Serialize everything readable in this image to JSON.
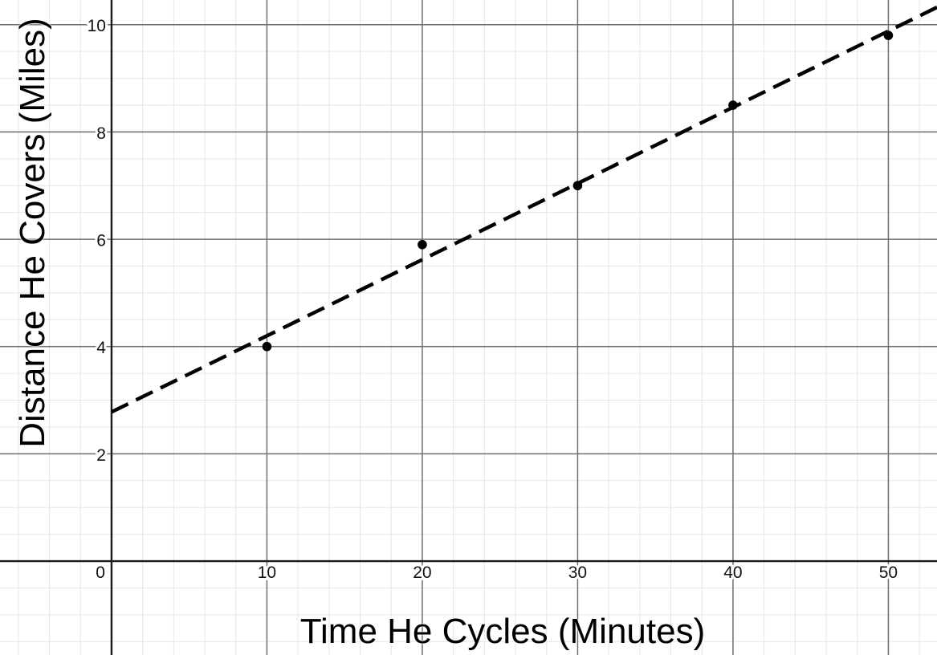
{
  "chart_data": {
    "type": "scatter",
    "title": "",
    "xlabel": "Time He Cycles (Minutes)",
    "ylabel": "Distance He Covers (Miles)",
    "x_ticks": [
      0,
      10,
      20,
      30,
      40,
      50
    ],
    "y_ticks": [
      2,
      4,
      6,
      8,
      10
    ],
    "xlim": [
      -7.18,
      53.13
    ],
    "ylim": [
      -1.75,
      10.46
    ],
    "grid": {
      "shown": true,
      "x_minor_step": 2,
      "x_major_step": 10,
      "y_minor_step": 0.5,
      "y_major_step": 2
    },
    "points": [
      {
        "x": 10,
        "y": 4.0
      },
      {
        "x": 20,
        "y": 5.9
      },
      {
        "x": 30,
        "y": 7.0
      },
      {
        "x": 40,
        "y": 8.5
      },
      {
        "x": 50,
        "y": 9.8
      }
    ],
    "trend_line": {
      "kind": "line-of-best-fit",
      "style": "dashed",
      "slope": 0.142,
      "intercept": 2.78,
      "x_start": 0
    },
    "style": {
      "background": "#ffffff",
      "axis_color": "#1a1a1a",
      "grid_major_color": "#6e6e6e",
      "grid_minor_color": "#e6e6e6",
      "point_color": "#000000",
      "trend_color": "#000000",
      "point_radius": 5.8,
      "dash_pattern": [
        23,
        11
      ]
    }
  }
}
